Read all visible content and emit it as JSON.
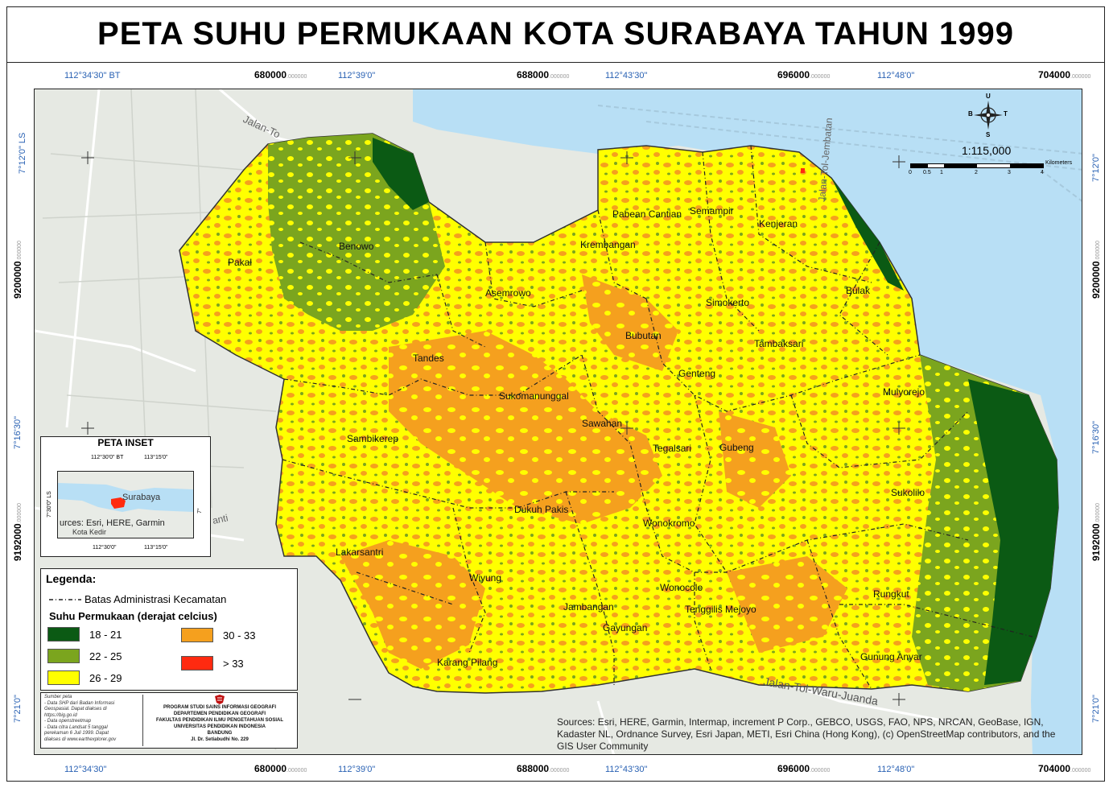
{
  "title": "PETA SUHU PERMUKAAN KOTA SURABAYA TAHUN 1999",
  "top_coords": {
    "lon1": "112°34'30\" BT",
    "x1": "680000",
    "lon2": "112°39'0\"",
    "x2": "688000",
    "lon3": "112°43'30\"",
    "x3": "696000",
    "lon4": "112°48'0\"",
    "x4": "704000",
    "suffix": ".000000"
  },
  "bottom_coords": {
    "lon1": "112°34'30\"",
    "x1": "680000",
    "lon2": "112°39'0\"",
    "x2": "688000",
    "lon3": "112°43'30\"",
    "x3": "696000",
    "lon4": "112°48'0\"",
    "x4": "704000",
    "suffix": ".000000"
  },
  "left_coords": {
    "lat1": "7°12'0\" LS",
    "y1": "9200000",
    "lat2": "7°16'30\"",
    "y2": "9192000",
    "lat3": "7°21'0\"",
    "suffix": ".000000"
  },
  "right_coords": {
    "lat1": "7°12'0\"",
    "y1": "9200000",
    "lat2": "7°16'30\"",
    "y2": "9192000",
    "lat3": "7°21'0\"",
    "suffix": ".000000"
  },
  "districts": [
    "Pakal",
    "Benowo",
    "Asemrowo",
    "Krembangan",
    "Pabean Cantian",
    "Semampir",
    "Kenjeran",
    "Bulak",
    "Simokerto",
    "Bubutan",
    "Tambaksari",
    "Tandes",
    "Genteng",
    "Sukomanunggal",
    "Mulyorejo",
    "Sawahan",
    "Sambikerep",
    "Tegalsari",
    "Gubeng",
    "Sukolilo",
    "Dukuh Pakis",
    "Wonokromo",
    "Lakarsantri",
    "Wiyung",
    "Wonocolo",
    "Rungkut",
    "Jambangan",
    "Tenggilis Mejoyo",
    "Gayungan",
    "Gunung Anyar",
    "Karang Pilang"
  ],
  "basemap_labels": {
    "jalan_tol_top": "Jalan-To",
    "jalan_tol_right": "Jalan-Tol-Jembatan",
    "jalan_tol_waru": "Jalan-Tol-Waru-Juanda",
    "road_left": "anti"
  },
  "north_arrow": {
    "n": "U",
    "s": "S",
    "e": "T",
    "w": "B"
  },
  "scale": {
    "ratio": "1:115,000",
    "unit": "Kilometers",
    "ticks": [
      "0",
      "0.5",
      "1",
      "2",
      "3",
      "4"
    ]
  },
  "inset": {
    "title": "PETA INSET",
    "top_lon1": "112°30'0\" BT",
    "top_lon2": "113°15'0\"",
    "bottom_lon1": "112°30'0\"",
    "bottom_lon2": "113°15'0\"",
    "left_lat": "7°30'0\" LS",
    "right_lat": "7°",
    "city": "Surabaya",
    "source": "urces: Esri, HERE, Garmin",
    "city2": "Kota Kedir"
  },
  "legend": {
    "header": "Legenda:",
    "admin_label": "Batas Administrasi Kecamatan",
    "sub_header": "Suhu Permukaan (derajat celcius)",
    "classes": [
      {
        "label": "18 - 21",
        "color": "#0b5a14"
      },
      {
        "label": "22 - 25",
        "color": "#7ba51e"
      },
      {
        "label": "26 - 29",
        "color": "#ffff00"
      },
      {
        "label": "30 - 33",
        "color": "#f5a01e"
      },
      {
        "label": "> 33",
        "color": "#ff2a10"
      }
    ]
  },
  "info": {
    "left_lines": [
      "Sumber peta",
      "- Data SHP dari Badan Informasi",
      "Geospasial. Dapat diakses di",
      "https://big.go.id",
      "- Data openstreetmap",
      "- Data citra Landsat 5 tanggal",
      "perekaman 6 Juli 1999. Dapat",
      "diakses di www.earthexplorer.gov"
    ],
    "right_lines": [
      "PROGRAM STUDI SAINS INFORMASI GEOGRAFI",
      "DEPARTEMEN PENDIDIKAN GEOGRAFI",
      "FAKULTAS PENDIDIKAN ILMU PENGETAHUAN SOSIAL",
      "UNIVERSITAS PENDIDIKAN INDONESIA",
      "BANDUNG",
      "Jl. Dr. Setiabudhi No. 229"
    ]
  },
  "attribution": "Sources: Esri, HERE, Garmin, Intermap, increment P Corp., GEBCO, USGS, FAO, NPS, NRCAN, GeoBase, IGN, Kadaster NL, Ordnance Survey, Esri Japan, METI, Esri China (Hong Kong), (c) OpenStreetMap contributors, and the GIS User Community",
  "colors": {
    "sea": "#b8dff5",
    "basemap": "#e6e9e3",
    "green_dark": "#0b5a14",
    "green_light": "#7ba51e",
    "yellow": "#ffff00",
    "orange": "#f5a01e",
    "red": "#ff2a10",
    "coord_blue": "#2a62b4"
  }
}
